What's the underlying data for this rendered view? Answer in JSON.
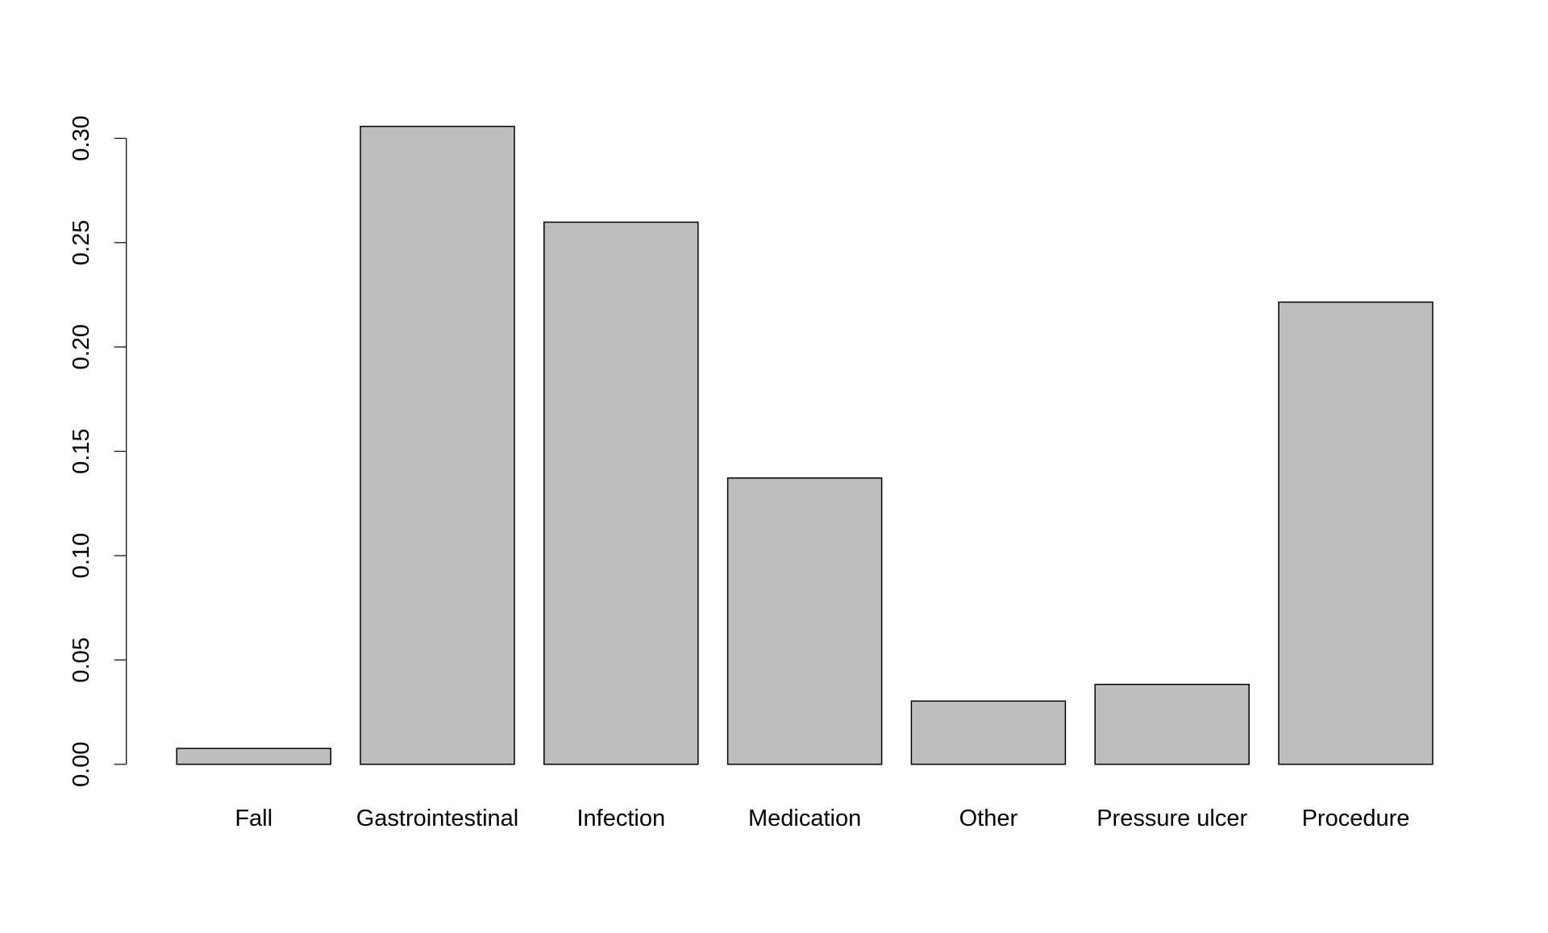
{
  "chart_data": {
    "type": "bar",
    "categories": [
      "Fall",
      "Gastrointestinal",
      "Infection",
      "Medication",
      "Other",
      "Pressure ulcer",
      "Procedure"
    ],
    "values": [
      0.0076,
      0.3057,
      0.2598,
      0.1372,
      0.0303,
      0.0383,
      0.2215
    ],
    "color": "#bebebe",
    "ylim": [
      0,
      0.31
    ],
    "yticks": [
      {
        "value": 0,
        "label": "0.00"
      },
      0.05,
      {
        "value": 0.1,
        "label": "0.10"
      },
      0.15,
      {
        "value": 0.2,
        "label": "0.20"
      },
      0.25,
      {
        "value": 0.3,
        "label": "0.30"
      }
    ],
    "grid": false
  }
}
